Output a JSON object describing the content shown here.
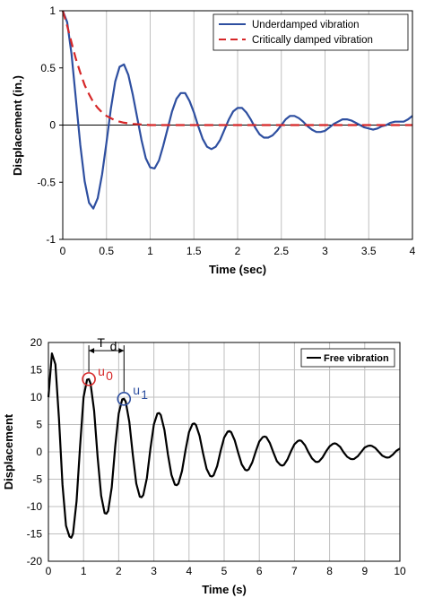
{
  "chart_data": [
    {
      "type": "line",
      "xlabel": "Time (sec)",
      "ylabel": "Displacement (in.)",
      "xlim": [
        0,
        4
      ],
      "ylim": [
        -1,
        1
      ],
      "xticks": [
        "0",
        "0.5",
        "1",
        "1.5",
        "2",
        "2.5",
        "3",
        "3.5",
        "4"
      ],
      "yticks": [
        "1",
        "0.5",
        "0",
        "-0.5",
        "-1"
      ],
      "grid": "vertical",
      "legend": "top-right",
      "series": [
        {
          "name": "Underdamped vibration",
          "color": "#2E4FA0",
          "style": "solid",
          "x": [
            0,
            0.05,
            0.1,
            0.15,
            0.2,
            0.25,
            0.3,
            0.35,
            0.4,
            0.45,
            0.5,
            0.55,
            0.6,
            0.65,
            0.7,
            0.75,
            0.8,
            0.85,
            0.9,
            0.95,
            1.0,
            1.05,
            1.1,
            1.15,
            1.2,
            1.25,
            1.3,
            1.35,
            1.4,
            1.45,
            1.5,
            1.55,
            1.6,
            1.65,
            1.7,
            1.75,
            1.8,
            1.85,
            1.9,
            1.95,
            2.0,
            2.05,
            2.1,
            2.15,
            2.2,
            2.25,
            2.3,
            2.35,
            2.4,
            2.45,
            2.5,
            2.55,
            2.6,
            2.65,
            2.7,
            2.75,
            2.8,
            2.85,
            2.9,
            2.95,
            3.0,
            3.05,
            3.1,
            3.15,
            3.2,
            3.25,
            3.3,
            3.35,
            3.4,
            3.45,
            3.5,
            3.55,
            3.6,
            3.65,
            3.7,
            3.75,
            3.8,
            3.85,
            3.9,
            3.95,
            4.0
          ],
          "y": [
            1.0,
            0.9,
            0.62,
            0.23,
            -0.17,
            -0.49,
            -0.68,
            -0.73,
            -0.64,
            -0.43,
            -0.15,
            0.14,
            0.38,
            0.51,
            0.53,
            0.44,
            0.27,
            0.07,
            -0.13,
            -0.29,
            -0.37,
            -0.38,
            -0.31,
            -0.18,
            -0.03,
            0.12,
            0.23,
            0.28,
            0.28,
            0.21,
            0.11,
            -0.01,
            -0.12,
            -0.19,
            -0.21,
            -0.19,
            -0.13,
            -0.04,
            0.05,
            0.12,
            0.15,
            0.15,
            0.11,
            0.05,
            -0.02,
            -0.08,
            -0.11,
            -0.11,
            -0.09,
            -0.05,
            0.0,
            0.05,
            0.08,
            0.08,
            0.06,
            0.03,
            -0.01,
            -0.04,
            -0.06,
            -0.06,
            -0.05,
            -0.02,
            0.01,
            0.03,
            0.05,
            0.05,
            0.04,
            0.02,
            0.0,
            -0.02,
            -0.03,
            -0.04,
            -0.03,
            -0.01,
            0.0,
            0.02,
            0.03,
            0.03,
            0.03,
            0.05,
            0.08
          ]
        },
        {
          "name": "Critically damped vibration",
          "color": "#D62728",
          "style": "dashed",
          "x": [
            0,
            0.05,
            0.1,
            0.15,
            0.2,
            0.25,
            0.3,
            0.35,
            0.4,
            0.45,
            0.5,
            0.55,
            0.6,
            0.65,
            0.7,
            0.8,
            0.9,
            1.0,
            1.2,
            1.5,
            2.0,
            2.5,
            3.0,
            3.5,
            4.0
          ],
          "y": [
            1.0,
            0.87,
            0.72,
            0.58,
            0.46,
            0.35,
            0.27,
            0.2,
            0.15,
            0.11,
            0.08,
            0.06,
            0.04,
            0.03,
            0.02,
            0.01,
            0.005,
            0.0,
            0.0,
            0.0,
            0.0,
            0.0,
            0.0,
            0.0,
            0.0
          ]
        }
      ]
    },
    {
      "type": "line",
      "xlabel": "Time (s)",
      "ylabel": "Displacement",
      "xlim": [
        0,
        10
      ],
      "ylim": [
        -20,
        20
      ],
      "xticks": [
        "0",
        "1",
        "2",
        "3",
        "4",
        "5",
        "6",
        "7",
        "8",
        "9",
        "10"
      ],
      "yticks": [
        "20",
        "15",
        "10",
        "5",
        "0",
        "-5",
        "-10",
        "-15",
        "-20"
      ],
      "grid": "both",
      "legend": "top-right",
      "series": [
        {
          "name": "Free vibration",
          "color": "#000000",
          "style": "solid",
          "x": [
            0,
            0.1,
            0.2,
            0.3,
            0.4,
            0.5,
            0.6,
            0.65,
            0.7,
            0.8,
            0.9,
            1.0,
            1.1,
            1.15,
            1.2,
            1.3,
            1.4,
            1.5,
            1.6,
            1.65,
            1.7,
            1.8,
            1.9,
            2.0,
            2.1,
            2.15,
            2.2,
            2.3,
            2.4,
            2.5,
            2.6,
            2.65,
            2.7,
            2.8,
            2.9,
            3.0,
            3.1,
            3.15,
            3.2,
            3.3,
            3.4,
            3.5,
            3.6,
            3.65,
            3.7,
            3.8,
            3.9,
            4.0,
            4.1,
            4.15,
            4.2,
            4.3,
            4.4,
            4.5,
            4.6,
            4.65,
            4.7,
            4.8,
            4.9,
            5.0,
            5.1,
            5.15,
            5.2,
            5.3,
            5.4,
            5.5,
            5.6,
            5.65,
            5.7,
            5.8,
            5.9,
            6.0,
            6.1,
            6.15,
            6.2,
            6.3,
            6.4,
            6.5,
            6.6,
            6.65,
            6.7,
            6.8,
            6.9,
            7.0,
            7.1,
            7.15,
            7.2,
            7.3,
            7.4,
            7.5,
            7.6,
            7.65,
            7.7,
            7.8,
            7.9,
            8.0,
            8.1,
            8.15,
            8.2,
            8.3,
            8.4,
            8.5,
            8.6,
            8.65,
            8.7,
            8.8,
            8.9,
            9.0,
            9.1,
            9.15,
            9.2,
            9.3,
            9.4,
            9.5,
            9.6,
            9.65,
            9.7,
            9.8,
            9.9,
            10.0
          ],
          "y": [
            10,
            18,
            16,
            6,
            -6,
            -13.5,
            -15.5,
            -15.7,
            -15,
            -9,
            1,
            10,
            13.2,
            13.3,
            12.5,
            7.5,
            -1,
            -8,
            -11.2,
            -11.3,
            -10.8,
            -6.5,
            1,
            7,
            9.6,
            9.7,
            9.2,
            5.5,
            -0.5,
            -5.8,
            -8.2,
            -8.3,
            -7.9,
            -4.8,
            0.5,
            5,
            7,
            7.1,
            6.7,
            4,
            -0.5,
            -4.2,
            -6,
            -6.1,
            -5.8,
            -3.5,
            0.3,
            3.6,
            5.1,
            5.2,
            4.9,
            2.9,
            -0.3,
            -3.1,
            -4.4,
            -4.5,
            -4.3,
            -2.6,
            0.2,
            2.6,
            3.7,
            3.8,
            3.6,
            2.1,
            -0.2,
            -2.3,
            -3.3,
            -3.4,
            -3.2,
            -1.9,
            0.1,
            1.9,
            2.7,
            2.8,
            2.7,
            1.6,
            -0.1,
            -1.7,
            -2.4,
            -2.5,
            -2.4,
            -1.4,
            0.1,
            1.4,
            2.0,
            2.1,
            2.0,
            1.2,
            -0.1,
            -1.2,
            -1.8,
            -1.85,
            -1.75,
            -1.0,
            0.1,
            1.0,
            1.5,
            1.55,
            1.45,
            0.9,
            -0.1,
            -0.9,
            -1.3,
            -1.35,
            -1.3,
            -0.8,
            0,
            0.8,
            1.1,
            1.15,
            1.1,
            0.7,
            0,
            -0.7,
            -1.0,
            -1.05,
            -1.0,
            -0.5,
            0.2,
            0.6
          ]
        }
      ],
      "annotations": {
        "period_label": "T",
        "period_sub": "d",
        "u0_label": "u",
        "u0_sub": "0",
        "u1_label": "u",
        "u1_sub": "1",
        "u0_color": "#D62728",
        "u1_color": "#2E4FA0",
        "u0_point": [
          1.15,
          13.3
        ],
        "u1_point": [
          2.15,
          9.7
        ]
      }
    }
  ]
}
